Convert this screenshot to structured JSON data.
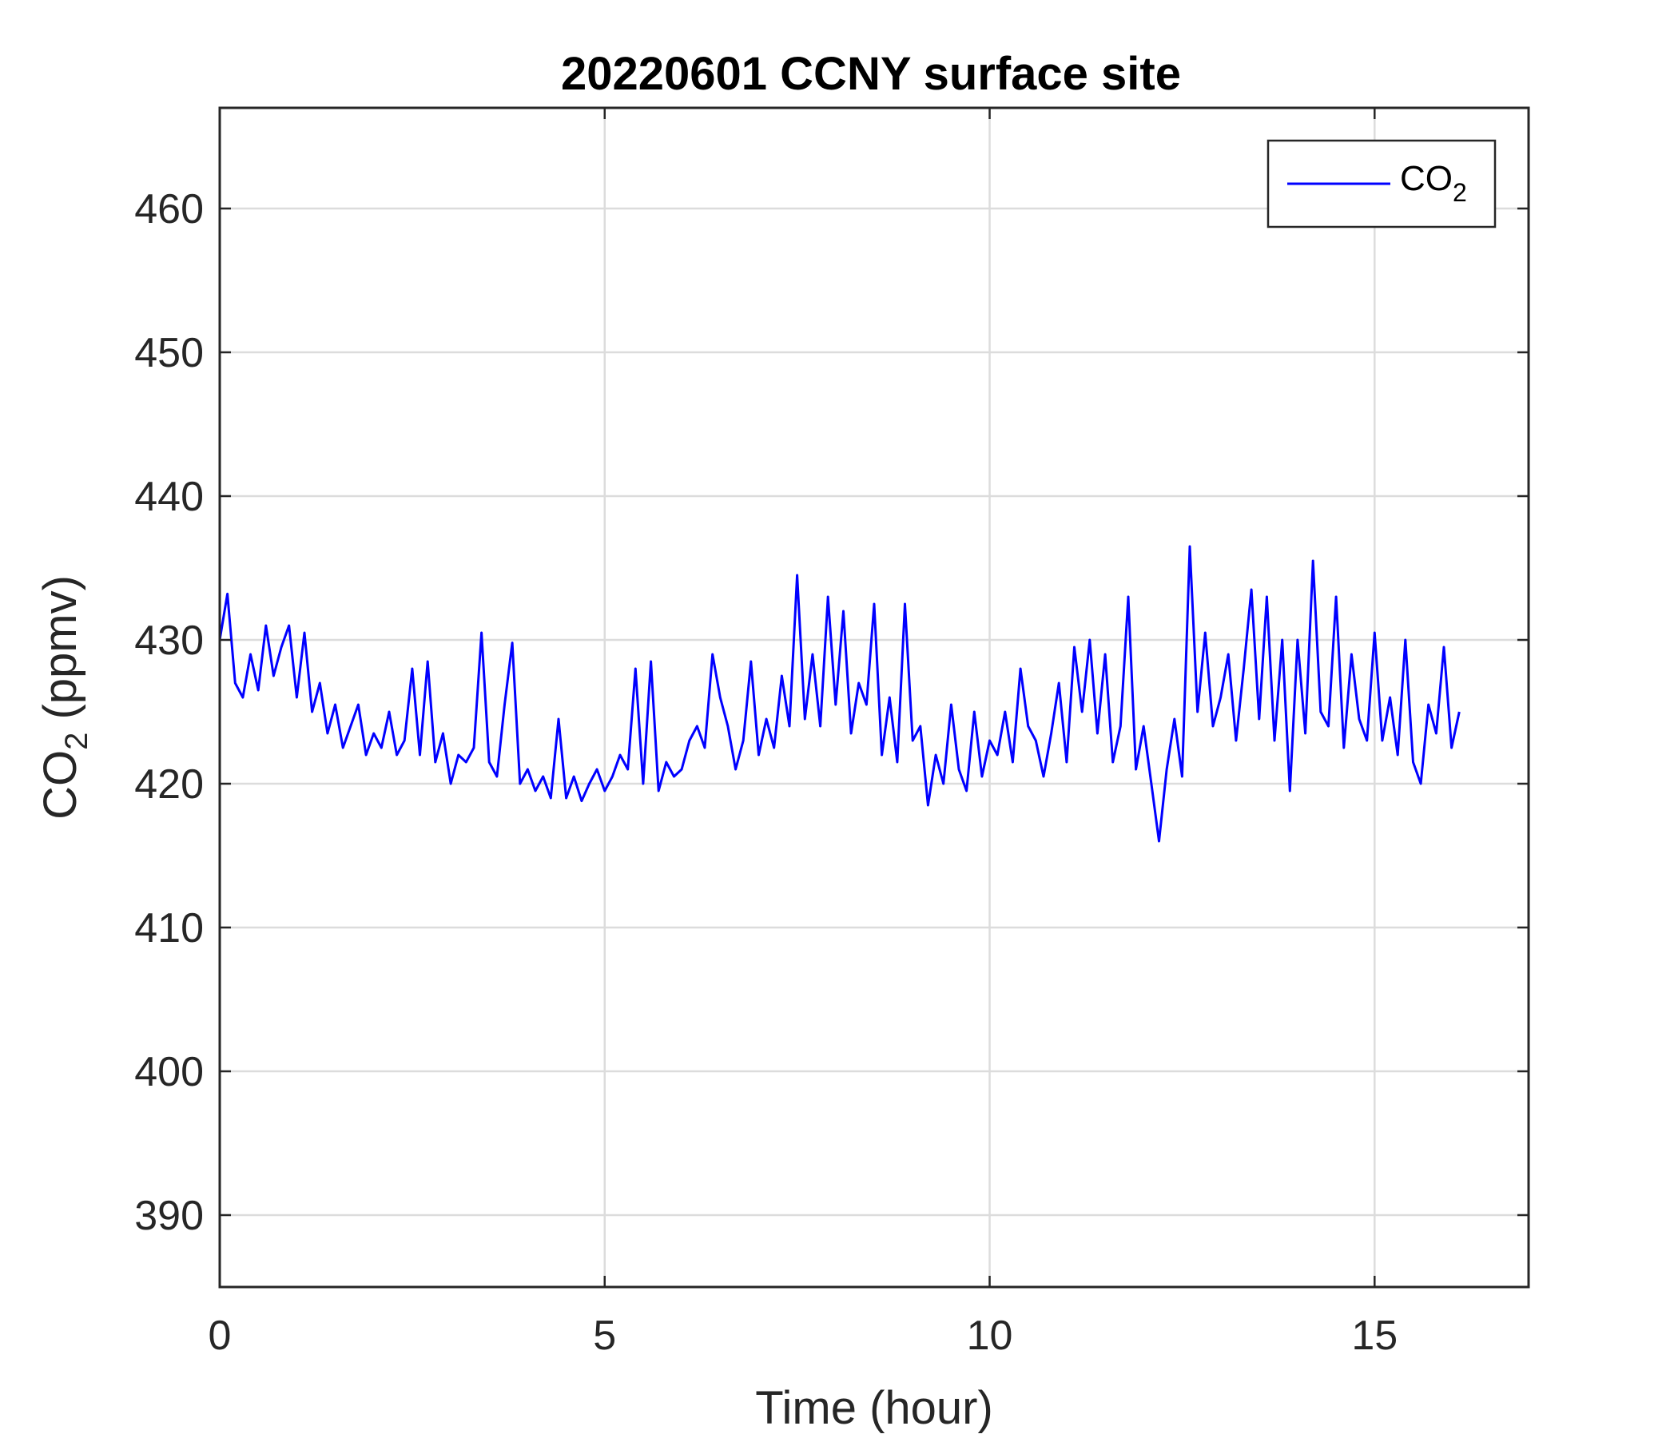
{
  "chart_data": {
    "type": "line",
    "title": "20220601 CCNY surface site",
    "xlabel": "Time (hour)",
    "ylabel_main": "CO",
    "ylabel_sub": "2",
    "ylabel_rest": " (ppmv)",
    "xlim": [
      0,
      17
    ],
    "ylim": [
      385,
      467
    ],
    "xticks": [
      0,
      5,
      10,
      15
    ],
    "yticks": [
      390,
      400,
      410,
      420,
      430,
      440,
      450,
      460
    ],
    "xtick_labels": [
      "0",
      "5",
      "10",
      "15"
    ],
    "ytick_labels": [
      "390",
      "400",
      "410",
      "420",
      "430",
      "440",
      "450",
      "460"
    ],
    "grid": true,
    "legend_position": "top-right",
    "legend": {
      "main": "CO",
      "sub": "2"
    },
    "series": [
      {
        "name": "CO2",
        "color": "#0000ff",
        "x": [
          0.0,
          0.1,
          0.2,
          0.3,
          0.4,
          0.5,
          0.6,
          0.7,
          0.8,
          0.9,
          1.0,
          1.1,
          1.2,
          1.3,
          1.4,
          1.5,
          1.6,
          1.7,
          1.8,
          1.9,
          2.0,
          2.1,
          2.2,
          2.3,
          2.4,
          2.5,
          2.6,
          2.7,
          2.8,
          2.9,
          3.0,
          3.1,
          3.2,
          3.3,
          3.4,
          3.5,
          3.6,
          3.7,
          3.8,
          3.9,
          4.0,
          4.1,
          4.2,
          4.3,
          4.4,
          4.5,
          4.6,
          4.7,
          4.8,
          4.9,
          5.0,
          5.1,
          5.2,
          5.3,
          5.4,
          5.5,
          5.6,
          5.7,
          5.8,
          5.9,
          6.0,
          6.1,
          6.2,
          6.3,
          6.4,
          6.5,
          6.6,
          6.7,
          6.8,
          6.9,
          7.0,
          7.1,
          7.2,
          7.3,
          7.4,
          7.5,
          7.6,
          7.7,
          7.8,
          7.9,
          8.0,
          8.1,
          8.2,
          8.3,
          8.4,
          8.5,
          8.6,
          8.7,
          8.8,
          8.9,
          9.0,
          9.1,
          9.2,
          9.3,
          9.4,
          9.5,
          9.6,
          9.7,
          9.8,
          9.9,
          10.0,
          10.1,
          10.2,
          10.3,
          10.4,
          10.5,
          10.6,
          10.7,
          10.8,
          10.9,
          11.0,
          11.1,
          11.2,
          11.3,
          11.4,
          11.5,
          11.6,
          11.7,
          11.8,
          11.9,
          12.0,
          12.1,
          12.2,
          12.3,
          12.4,
          12.5,
          12.6,
          12.7,
          12.8,
          12.9,
          13.0,
          13.1,
          13.2,
          13.3,
          13.4,
          13.5,
          13.6,
          13.7,
          13.8,
          13.9,
          14.0,
          14.1,
          14.2,
          14.3,
          14.4,
          14.5,
          14.6,
          14.7,
          14.8,
          14.9,
          15.0,
          15.1,
          15.2,
          15.3,
          15.4,
          15.5,
          15.6,
          15.7,
          15.8,
          15.9,
          16.0,
          16.1
        ],
        "values": [
          430.0,
          433.2,
          427.0,
          426.0,
          429.0,
          426.5,
          431.0,
          427.5,
          429.5,
          431.0,
          426.0,
          430.5,
          425.0,
          427.0,
          423.5,
          425.5,
          422.5,
          424.0,
          425.5,
          422.0,
          423.5,
          422.5,
          425.0,
          422.0,
          423.0,
          428.0,
          422.0,
          428.5,
          421.5,
          423.5,
          420.0,
          422.0,
          421.5,
          422.5,
          430.5,
          421.5,
          420.5,
          425.5,
          429.8,
          420.0,
          421.0,
          419.5,
          420.5,
          419.0,
          424.5,
          419.0,
          420.5,
          418.8,
          420.0,
          421.0,
          419.5,
          420.5,
          422.0,
          421.0,
          428.0,
          420.0,
          428.5,
          419.5,
          421.5,
          420.5,
          421.0,
          423.0,
          424.0,
          422.5,
          429.0,
          426.0,
          424.0,
          421.0,
          423.0,
          428.5,
          422.0,
          424.5,
          422.5,
          427.5,
          424.0,
          434.5,
          424.5,
          429.0,
          424.0,
          433.0,
          425.5,
          432.0,
          423.5,
          427.0,
          425.5,
          432.5,
          422.0,
          426.0,
          421.5,
          432.5,
          423.0,
          424.0,
          418.5,
          422.0,
          420.0,
          425.5,
          421.0,
          419.5,
          425.0,
          420.5,
          423.0,
          422.0,
          425.0,
          421.5,
          428.0,
          424.0,
          423.0,
          420.5,
          423.5,
          427.0,
          421.5,
          429.5,
          425.0,
          430.0,
          423.5,
          429.0,
          421.5,
          424.0,
          433.0,
          421.0,
          424.0,
          420.0,
          416.0,
          421.0,
          424.5,
          420.5,
          436.5,
          425.0,
          430.5,
          424.0,
          426.0,
          429.0,
          423.0,
          428.0,
          433.5,
          424.5,
          433.0,
          423.0,
          430.0,
          419.5,
          430.0,
          423.5,
          435.5,
          425.0,
          424.0,
          433.0,
          422.5,
          429.0,
          424.5,
          423.0,
          430.5,
          423.0,
          426.0,
          422.0,
          430.0,
          421.5,
          420.0,
          425.5,
          423.5,
          429.5,
          422.5,
          425.0
        ]
      }
    ]
  }
}
